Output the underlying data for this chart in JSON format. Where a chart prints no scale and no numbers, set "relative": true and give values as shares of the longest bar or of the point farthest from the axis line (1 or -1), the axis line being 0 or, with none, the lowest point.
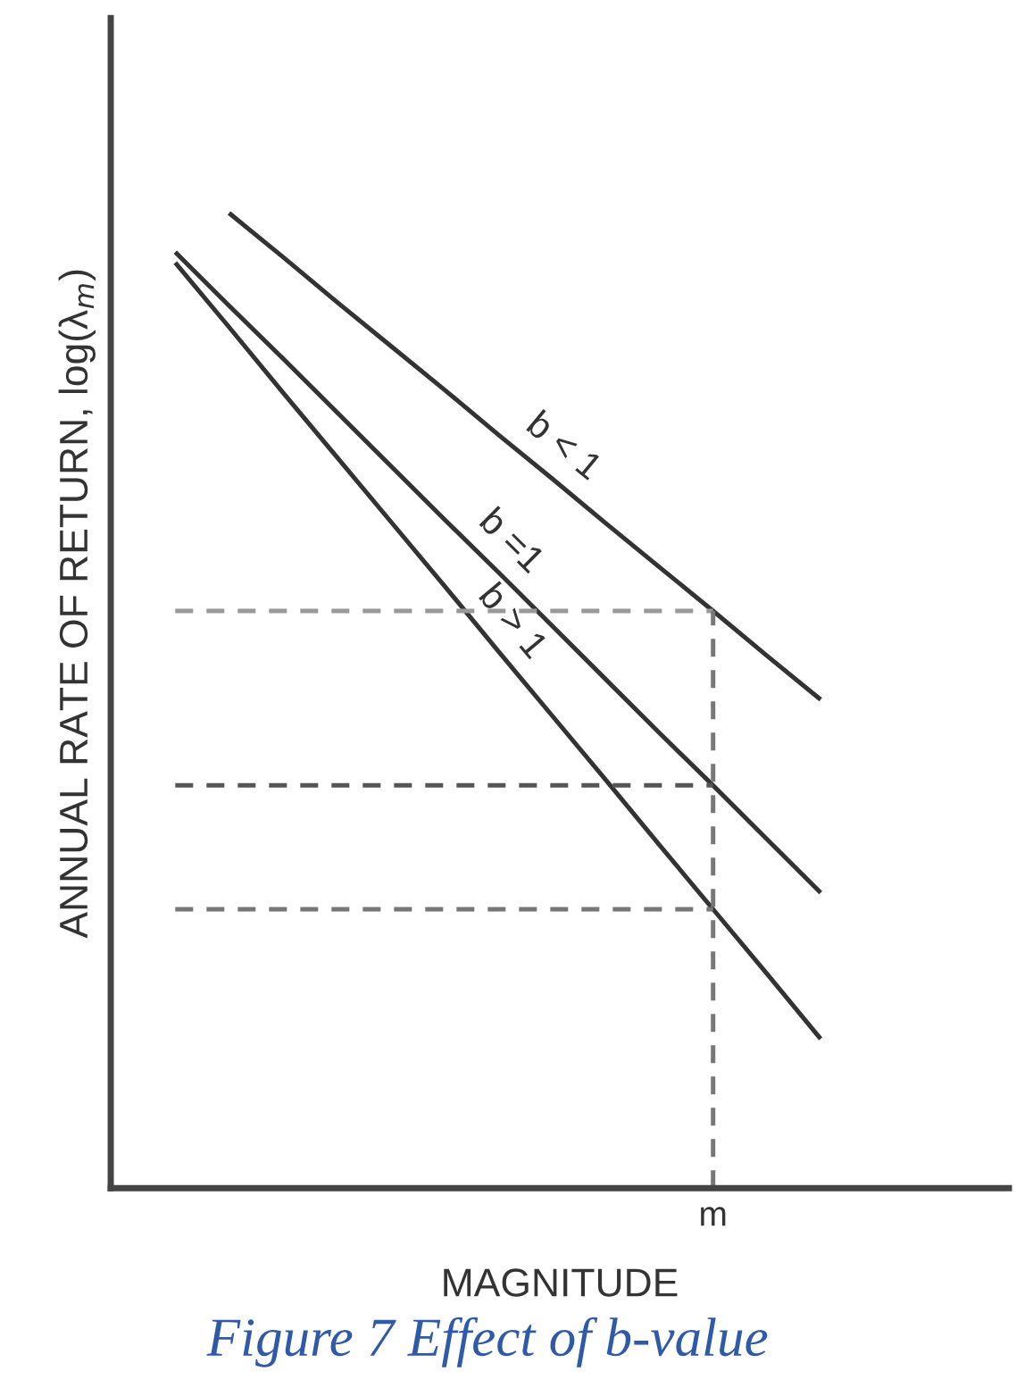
{
  "chart_data": {
    "type": "line",
    "relative": true,
    "title": "Figure 7 Effect of b-value",
    "xlabel": "MAGNITUDE",
    "ylabel": "ANNUAL RATE OF RETURN, log(λ$_{m}$)",
    "tick_labels": "x",
    "grid": false,
    "legend": false,
    "marker": "none",
    "categories": [
      null,
      null,
      null,
      null,
      null,
      null,
      null,
      null,
      null,
      null,
      null,
      null,
      null
    ],
    "annotations": [
      "m"
    ],
    "series": [
      {
        "name": "b < 1",
        "color": "#333333",
        "values": [
          null,
          1.0,
          0.955,
          0.909,
          0.864,
          0.819,
          0.773,
          0.728,
          0.682,
          0.637,
          0.592,
          0.546,
          0.501
        ],
        "line_style": "solid"
      },
      {
        "name": "b =1",
        "color": "#333333",
        "values": [
          0.96,
          0.905,
          0.851,
          0.796,
          0.741,
          0.686,
          0.632,
          0.577,
          0.522,
          0.467,
          0.413,
          0.358,
          0.303
        ],
        "line_style": "solid"
      },
      {
        "name": "b > 1",
        "color": "#333333",
        "values": [
          0.949,
          0.883,
          0.816,
          0.75,
          0.684,
          0.618,
          0.551,
          0.485,
          0.419,
          0.352,
          0.286,
          0.22,
          0.153
        ],
        "line_style": "solid"
      },
      {
        "color": "#999999",
        "values": [
          0.592,
          0.592,
          0.592,
          0.592,
          0.592,
          0.592,
          0.592,
          0.592,
          0.592,
          0.592,
          0.592,
          null,
          null
        ],
        "line_style": "dashed"
      },
      {
        "color": "#555555",
        "values": [
          0.413,
          0.413,
          0.413,
          0.413,
          0.413,
          0.413,
          0.413,
          0.413,
          0.413,
          0.413,
          0.413,
          null,
          null
        ],
        "line_style": "dashed"
      },
      {
        "color": "#777777",
        "values": [
          0.286,
          0.286,
          0.286,
          0.286,
          0.286,
          0.286,
          0.286,
          0.286,
          0.286,
          0.286,
          0.286,
          null,
          null
        ],
        "line_style": "dashed"
      }
    ]
  }
}
